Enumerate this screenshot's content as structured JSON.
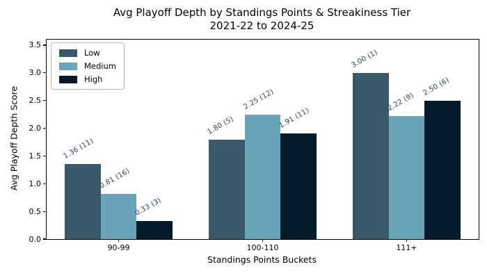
{
  "chart_data": {
    "type": "bar",
    "title": "Avg Playoff Depth by Standings Points & Streakiness Tier",
    "subtitle": "2021-22 to 2024-25",
    "xlabel": "Standings Points Buckets",
    "ylabel": "Avg Playoff Depth Score",
    "categories": [
      "90-99",
      "100-110",
      "111+"
    ],
    "series": [
      {
        "name": "Low",
        "color": "#39586C",
        "values": [
          1.36,
          1.8,
          3.0
        ],
        "counts": [
          11,
          5,
          1
        ],
        "labels": [
          "1.36 (11)",
          "1.80 (5)",
          "3.00 (1)"
        ]
      },
      {
        "name": "Medium",
        "color": "#6BA3BB",
        "values": [
          0.81,
          2.25,
          2.22
        ],
        "counts": [
          16,
          12,
          9
        ],
        "labels": [
          "0.81 (16)",
          "2.25 (12)",
          "2.22 (9)"
        ]
      },
      {
        "name": "High",
        "color": "#061A2C",
        "values": [
          0.33,
          1.91,
          2.5
        ],
        "counts": [
          3,
          11,
          6
        ],
        "labels": [
          "0.33 (3)",
          "1.91 (11)",
          "2.50 (6)"
        ]
      }
    ],
    "yticks": [
      "0.0",
      "0.5",
      "1.0",
      "1.5",
      "2.0",
      "2.5",
      "3.0",
      "3.5"
    ],
    "ylim": [
      0,
      3.6
    ],
    "grid": false,
    "legend_position": "upper-left",
    "annotation_color": "#2E4358",
    "frame": true,
    "background": "#FFFFFF"
  }
}
